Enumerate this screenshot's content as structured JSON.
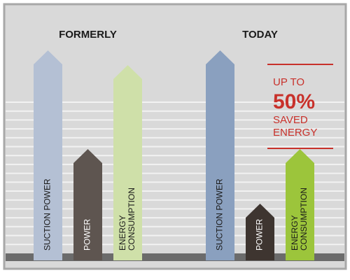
{
  "chart_data": {
    "type": "arrow",
    "groups": [
      "FORMERLY",
      "TODAY"
    ],
    "categories": [
      [
        "SUCTION POWER"
      ],
      [
        "POWER"
      ],
      [
        "ENERGY",
        "CONSUMPTION"
      ]
    ],
    "series": [
      {
        "name": "FORMERLY",
        "colors": [
          "#b4c0d4",
          "#5e5550",
          "#cfe0a9"
        ],
        "values": [
          100,
          53,
          93
        ]
      },
      {
        "name": "TODAY",
        "colors": [
          "#8aa0bf",
          "#3e3530",
          "#9cc53b"
        ],
        "values": [
          100,
          27,
          53
        ]
      }
    ],
    "ylim": [
      0,
      100
    ],
    "annotation": [
      "UP TO",
      "50%",
      "SAVED",
      "ENERGY"
    ],
    "annotation_color": "#c8312b"
  }
}
